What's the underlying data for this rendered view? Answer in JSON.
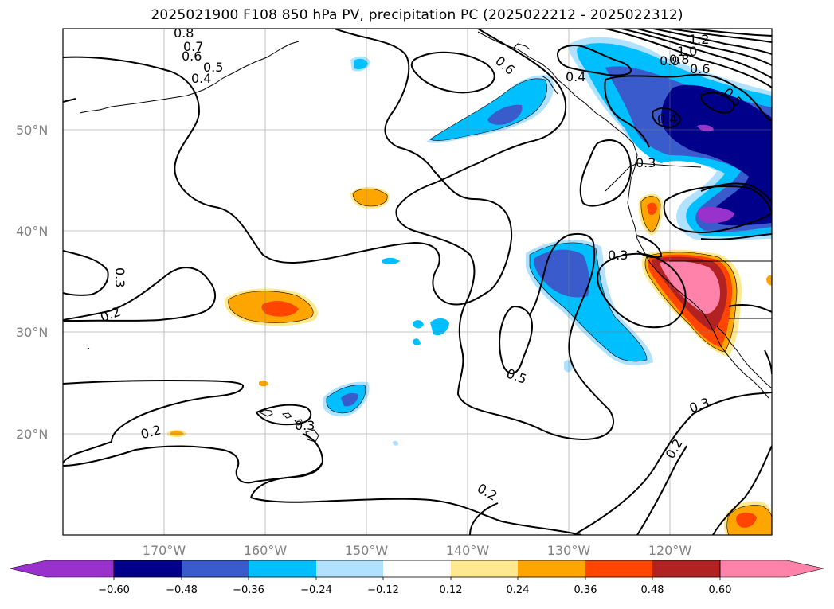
{
  "title": "2025021900 F108 850 hPa PV, precipitation PC (2025022212 - 2025022312)",
  "lat_labels": [
    "50°N",
    "40°N",
    "30°N",
    "20°N"
  ],
  "lon_labels": [
    "170°W",
    "160°W",
    "150°W",
    "140°W",
    "130°W",
    "120°W"
  ],
  "contour_labels": [
    "0.8",
    "0.7",
    "0.6",
    "0.5",
    "0.4",
    "0.6",
    "0.4",
    "1.2",
    "1.0",
    "0.9",
    "0.8",
    "0.6",
    "0.5",
    "0.4",
    "0.3",
    "0.3",
    "0.2",
    "0.3",
    "0.5",
    "0.3",
    "0.3",
    "0.2",
    "0.2",
    "0.2"
  ],
  "colorbar": {
    "ticks": [
      "−0.60",
      "−0.48",
      "−0.36",
      "−0.24",
      "−0.12",
      "0.12",
      "0.24",
      "0.36",
      "0.48",
      "0.60"
    ],
    "colors": [
      "#9932cc",
      "#00008b",
      "#3a5bcc",
      "#00bfff",
      "#b0e2ff",
      "#ffffff",
      "#ffe98f",
      "#ffa500",
      "#ff4500",
      "#b22222",
      "#ff82ab"
    ]
  }
}
